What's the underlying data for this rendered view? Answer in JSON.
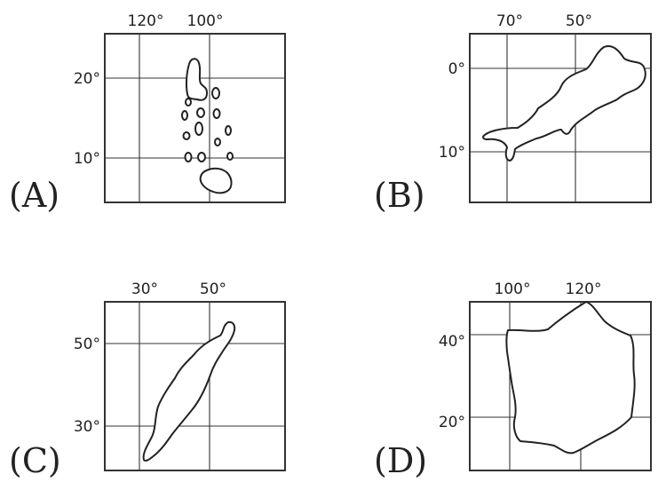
{
  "panels": [
    {
      "id": "A",
      "label": "(A)",
      "x_ticks": [
        "120°",
        "100°"
      ],
      "y_ticks": [
        "20°",
        "10°"
      ]
    },
    {
      "id": "B",
      "label": "(B)",
      "x_ticks": [
        "70°",
        "50°"
      ],
      "y_ticks": [
        "0°",
        "10°"
      ]
    },
    {
      "id": "C",
      "label": "(C)",
      "x_ticks": [
        "30°",
        "50°"
      ],
      "y_ticks": [
        "50°",
        "30°"
      ]
    },
    {
      "id": "D",
      "label": "(D)",
      "x_ticks": [
        "100°",
        "120°"
      ],
      "y_ticks": [
        "40°",
        "20°"
      ]
    }
  ]
}
